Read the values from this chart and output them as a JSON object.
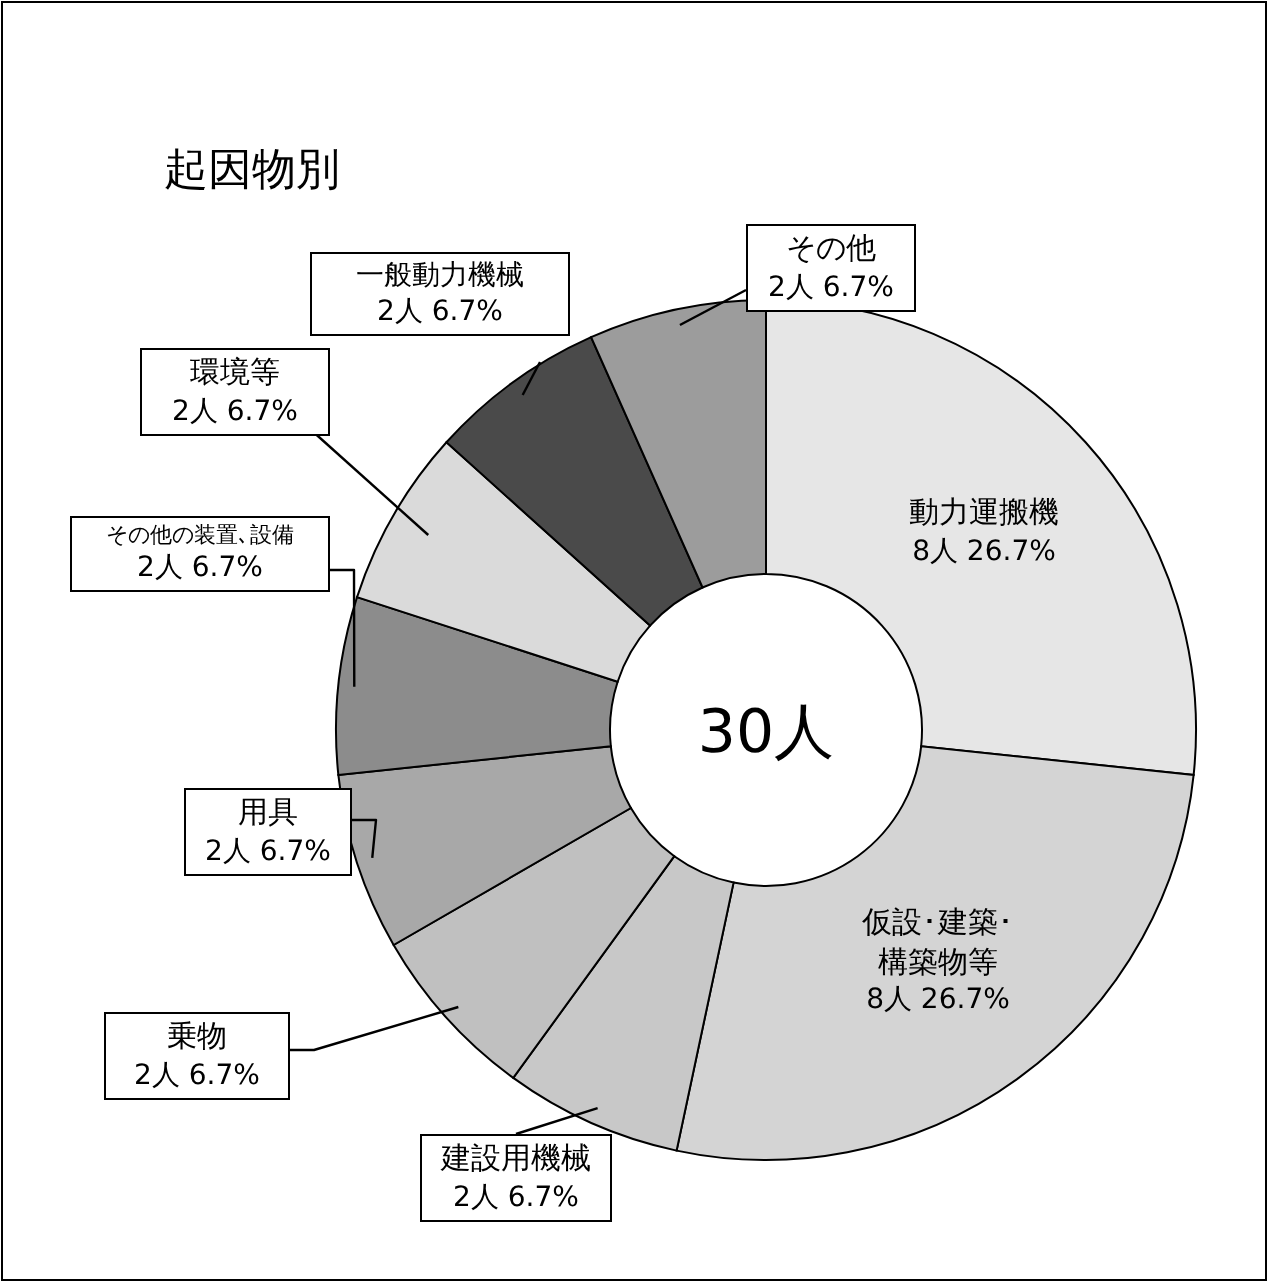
{
  "chart_data": {
    "type": "donut",
    "title": "起因物別",
    "categories": [
      "動力運搬機",
      "仮設･建築･構築物等",
      "建設用機械",
      "乗物",
      "用具",
      "その他の装置､設備",
      "環境等",
      "一般動力機械",
      "その他"
    ],
    "values": [
      8,
      8,
      2,
      2,
      2,
      2,
      2,
      2,
      2
    ],
    "value_labels": [
      "8人 26.7%",
      "8人 26.7%",
      "2人 6.7%",
      "2人 6.7%",
      "2人 6.7%",
      "2人 6.7%",
      "2人 6.7%",
      "2人 6.7%",
      "2人 6.7%"
    ],
    "colors": [
      "#e6e6e6",
      "#d4d4d4",
      "#c8c8c8",
      "#c0c0c0",
      "#a8a8a8",
      "#8c8c8c",
      "#dadada",
      "#4a4a4a",
      "#9c9c9c"
    ],
    "annotations": [
      "30人"
    ]
  }
}
